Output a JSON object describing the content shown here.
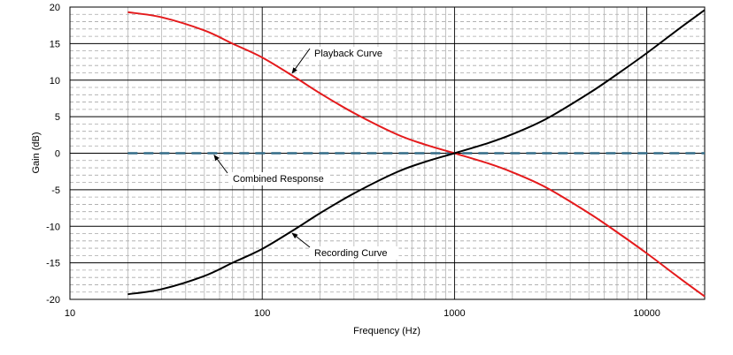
{
  "chart_data": {
    "type": "line",
    "title": "",
    "xlabel": "Frequency (Hz)",
    "ylabel": "Gain (dB)",
    "xscale": "log",
    "xlim": [
      10,
      20000
    ],
    "ylim": [
      -20,
      20
    ],
    "grid": true,
    "x_tick_labels": [
      "10",
      "100",
      "1000",
      "10000"
    ],
    "x_tick_values": [
      10,
      100,
      1000,
      10000
    ],
    "y_tick_values": [
      20,
      15,
      10,
      5,
      0,
      -5,
      -10,
      -15,
      -20
    ],
    "y_tick_labels": [
      "20",
      "15",
      "10",
      "5",
      "0",
      "-5",
      "-10",
      "-15",
      "-20"
    ],
    "series": [
      {
        "name": "Playback Curve",
        "color": "#e41a1c",
        "x": [
          20,
          30,
          50,
          70,
          100,
          150,
          200,
          300,
          500,
          700,
          1000,
          1500,
          2000,
          3000,
          5000,
          7000,
          10000,
          15000,
          20000
        ],
        "values": [
          19.3,
          18.6,
          16.8,
          15.0,
          13.1,
          10.3,
          8.2,
          5.5,
          2.6,
          1.2,
          0.0,
          -1.4,
          -2.6,
          -4.7,
          -8.2,
          -10.8,
          -13.7,
          -17.2,
          -19.6
        ]
      },
      {
        "name": "Recording Curve",
        "color": "#000000",
        "x": [
          20,
          30,
          50,
          70,
          100,
          150,
          200,
          300,
          500,
          700,
          1000,
          1500,
          2000,
          3000,
          5000,
          7000,
          10000,
          15000,
          20000
        ],
        "values": [
          -19.3,
          -18.6,
          -16.8,
          -15.0,
          -13.1,
          -10.3,
          -8.2,
          -5.5,
          -2.6,
          -1.2,
          0.0,
          1.4,
          2.6,
          4.7,
          8.2,
          10.8,
          13.7,
          17.2,
          19.6
        ]
      },
      {
        "name": "Combined Response",
        "color": "#336b87",
        "dashed": true,
        "x": [
          20,
          20000
        ],
        "values": [
          0,
          0
        ]
      }
    ],
    "annotations": [
      {
        "text": "Playback Curve",
        "series": "Playback Curve",
        "point": [
          140,
          10.7
        ],
        "label_at": [
          355,
          60
        ]
      },
      {
        "text": "Combined Response",
        "series": "Combined Response",
        "point": [
          55,
          0
        ],
        "label_at": [
          262,
          201
        ]
      },
      {
        "text": "Recording Curve",
        "series": "Recording Curve",
        "point": [
          140,
          -10.7
        ],
        "label_at": [
          355,
          285
        ]
      }
    ]
  }
}
